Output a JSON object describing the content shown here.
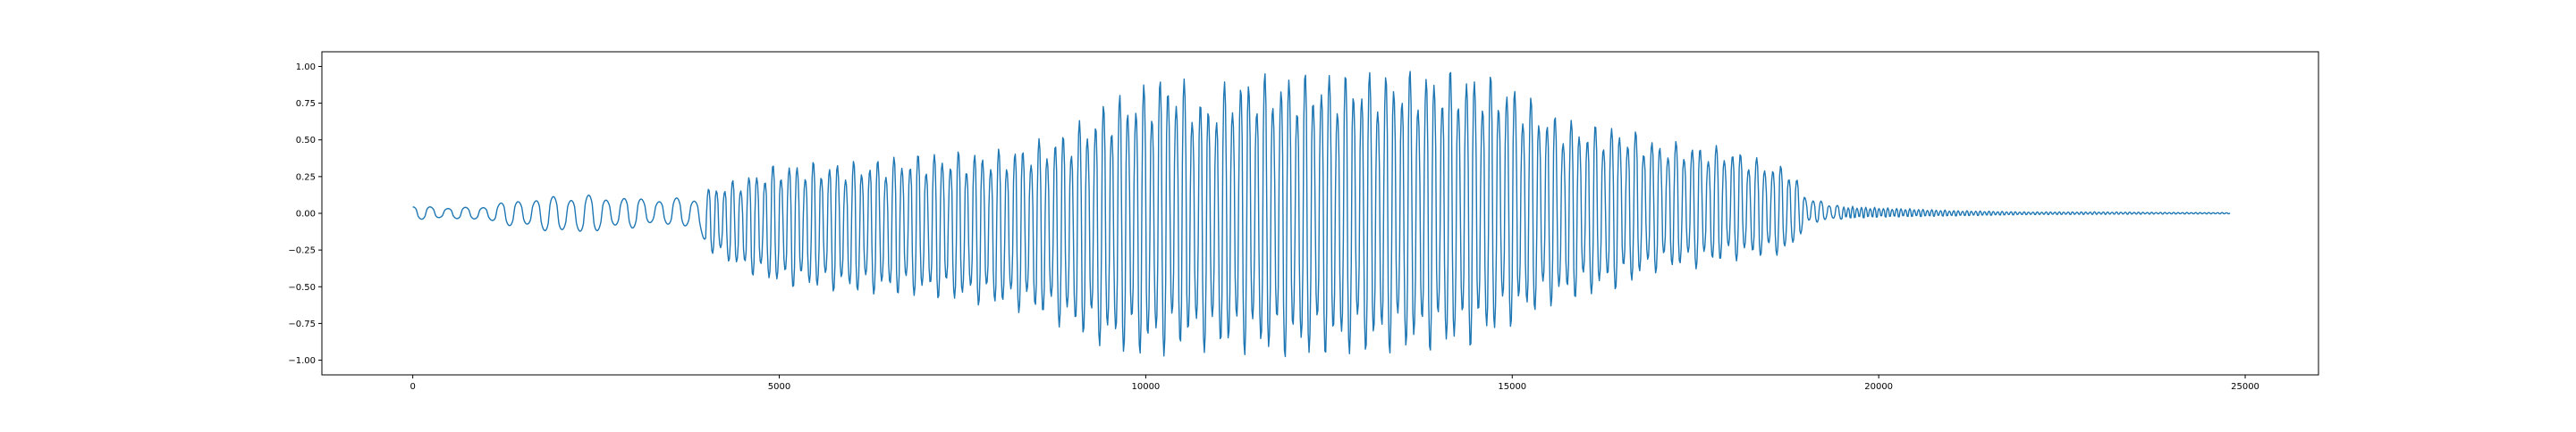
{
  "chart_data": {
    "type": "line",
    "title": "",
    "xlabel": "",
    "ylabel": "",
    "xlim": [
      -1240,
      26000
    ],
    "ylim": [
      -1.1,
      1.1
    ],
    "xticks": [
      0,
      5000,
      10000,
      15000,
      20000,
      25000
    ],
    "xtick_labels": [
      "0",
      "5000",
      "10000",
      "15000",
      "20000",
      "25000"
    ],
    "yticks": [
      1.0,
      0.75,
      0.5,
      0.25,
      0.0,
      -0.25,
      -0.5,
      -0.75,
      -1.0
    ],
    "ytick_labels": [
      "1.00",
      "0.75",
      "0.50",
      "0.25",
      "0.00",
      "−0.25",
      "−0.50",
      "−0.75",
      "−1.00"
    ],
    "grid": false,
    "legend": "none",
    "series": [
      {
        "color": "#1f77b4",
        "envelope": {
          "x": [
            0,
            800,
            1500,
            2200,
            2600,
            3000,
            3500,
            3900,
            4000,
            4500,
            5000,
            6000,
            7000,
            8000,
            8500,
            9000,
            9500,
            10000,
            10300,
            10600,
            10800,
            11200,
            12000,
            13000,
            14000,
            14500,
            15000,
            15500,
            16000,
            16500,
            17000,
            17500,
            18000,
            18500,
            18800,
            19000,
            19300,
            19500,
            20000,
            21000,
            22000,
            23000,
            24000,
            24800
          ],
          "max": [
            0.05,
            0.04,
            0.1,
            0.13,
            0.12,
            0.11,
            0.1,
            0.12,
            0.17,
            0.25,
            0.35,
            0.36,
            0.42,
            0.44,
            0.5,
            0.6,
            0.8,
            0.9,
            0.98,
            0.9,
            0.78,
            0.95,
            0.97,
            0.98,
            0.99,
            0.98,
            0.9,
            0.7,
            0.62,
            0.6,
            0.5,
            0.48,
            0.45,
            0.35,
            0.32,
            0.12,
            0.07,
            0.05,
            0.04,
            0.02,
            0.01,
            0.01,
            0.006,
            0.005
          ],
          "min": [
            -0.04,
            -0.04,
            -0.1,
            -0.15,
            -0.12,
            -0.1,
            -0.08,
            -0.12,
            -0.25,
            -0.4,
            -0.5,
            -0.55,
            -0.58,
            -0.65,
            -0.7,
            -0.82,
            -0.95,
            -1.0,
            -0.98,
            -0.92,
            -0.95,
            -0.96,
            -1.0,
            -0.98,
            -0.95,
            -0.92,
            -0.78,
            -0.65,
            -0.58,
            -0.52,
            -0.4,
            -0.38,
            -0.33,
            -0.3,
            -0.28,
            -0.08,
            -0.05,
            -0.04,
            -0.03,
            -0.02,
            -0.01,
            -0.008,
            -0.005,
            -0.004
          ]
        }
      }
    ]
  }
}
